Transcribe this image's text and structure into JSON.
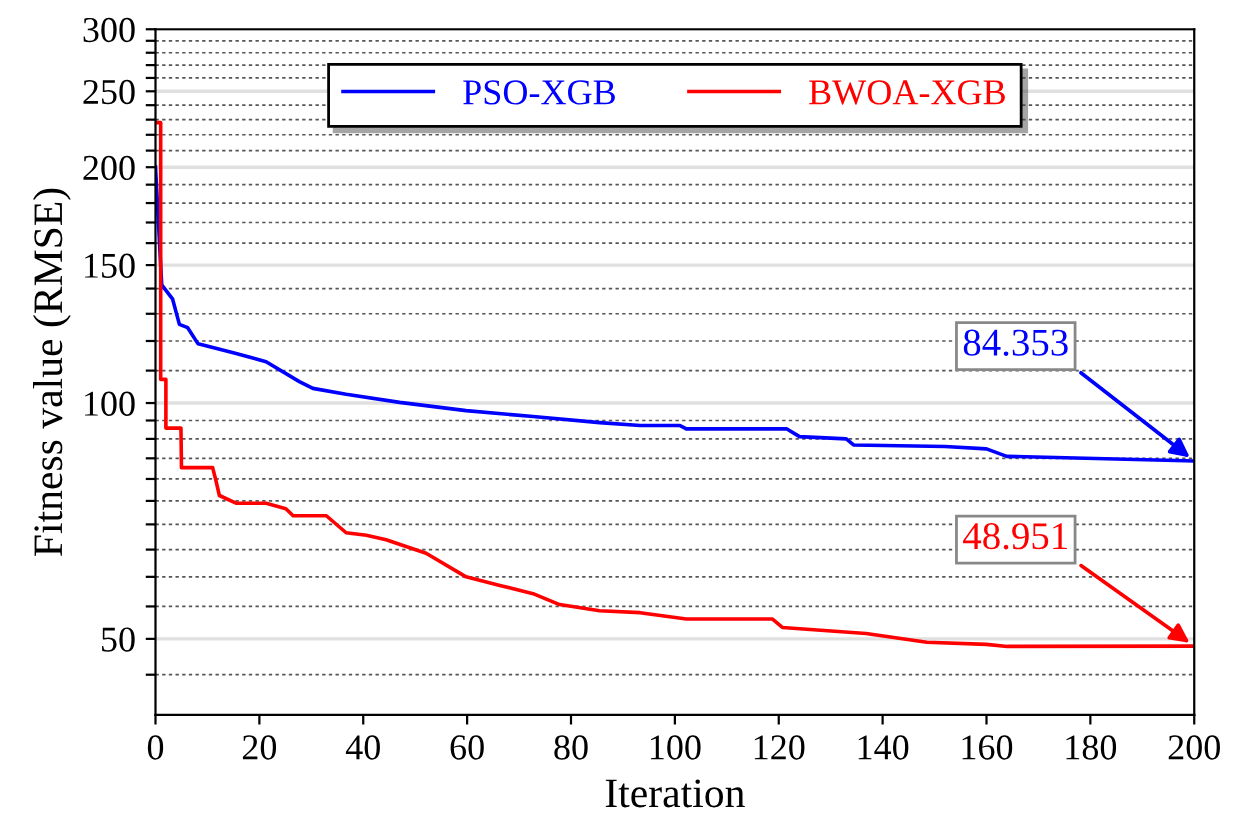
{
  "chart_data": {
    "type": "line",
    "xlabel": "Iteration",
    "ylabel": "Fitness value (RMSE)",
    "log": "y",
    "grid": "y",
    "legend": "top",
    "xlim": [
      0,
      200
    ],
    "xticks": [
      0,
      20,
      40,
      60,
      80,
      100,
      120,
      140,
      160,
      180,
      200
    ],
    "ylim": [
      40,
      300
    ],
    "yticks": [
      {
        "value": 45,
        "label": null
      },
      50,
      {
        "value": 55,
        "label": null
      },
      {
        "value": 60,
        "label": null
      },
      {
        "value": 65,
        "label": null
      },
      {
        "value": 70,
        "label": null
      },
      {
        "value": 75,
        "label": null
      },
      {
        "value": 80,
        "label": null
      },
      {
        "value": 85,
        "label": null
      },
      {
        "value": 90,
        "label": null
      },
      {
        "value": 95,
        "label": null
      },
      100,
      {
        "value": 110,
        "label": null
      },
      {
        "value": 120,
        "label": null
      },
      {
        "value": 130,
        "label": null
      },
      {
        "value": 140,
        "label": null
      },
      150,
      {
        "value": 160,
        "label": null
      },
      {
        "value": 170,
        "label": null
      },
      {
        "value": 180,
        "label": null
      },
      {
        "value": 190,
        "label": null
      },
      200,
      {
        "value": 210,
        "label": null
      },
      {
        "value": 220,
        "label": null
      },
      {
        "value": 230,
        "label": null
      },
      {
        "value": 240,
        "label": null
      },
      250,
      {
        "value": 260,
        "label": null
      },
      {
        "value": 270,
        "label": null
      },
      {
        "value": 280,
        "label": null
      },
      {
        "value": 290,
        "label": null
      },
      300
    ],
    "series": [
      {
        "name": "PSO-XGB",
        "color": "#0000ff",
        "x": [
          0,
          1.2,
          3.3,
          4.6,
          6.2,
          8.2,
          14.8,
          21.3,
          27.7,
          30.3,
          36.7,
          47,
          59.8,
          72.7,
          85.5,
          93.3,
          101,
          102.2,
          121.5,
          124,
          133,
          134.4,
          152,
          160,
          163.9,
          200
        ],
        "values": [
          200,
          141.5,
          135.7,
          126,
          124.8,
          119,
          116,
          112.9,
          106.5,
          104.4,
          102.6,
          100.2,
          97.8,
          96.1,
          94.4,
          93.6,
          93.6,
          92.7,
          92.7,
          90.6,
          90,
          88.4,
          88,
          87.4,
          85.5,
          84.353
        ]
      },
      {
        "name": "BWOA-XGB",
        "color": "#ff0000",
        "x": [
          0,
          1,
          1,
          2,
          2,
          4.9,
          5,
          11,
          11.5,
          12.3,
          15.5,
          21.3,
          25.1,
          26.5,
          32.9,
          36.7,
          40.6,
          44.4,
          52.1,
          59.8,
          66.3,
          72.7,
          77.8,
          85.5,
          93.3,
          102.2,
          118.8,
          120.7,
          136.8,
          148.5,
          160,
          164,
          200
        ],
        "values": [
          228,
          228,
          107.2,
          107.2,
          92.9,
          92.9,
          82.7,
          82.7,
          80.3,
          76.2,
          74.5,
          74.5,
          73.3,
          71.8,
          71.8,
          68.3,
          67.8,
          66.9,
          64.3,
          60,
          58.5,
          57.1,
          55.3,
          54.3,
          54,
          53,
          53,
          51.7,
          50.8,
          49.5,
          49.2,
          48.9,
          48.951
        ]
      }
    ],
    "annotations": [
      {
        "text": "84.353",
        "x": 200,
        "y": 84.353
      },
      {
        "text": "48.951",
        "x": 200,
        "y": 48.951
      }
    ]
  }
}
